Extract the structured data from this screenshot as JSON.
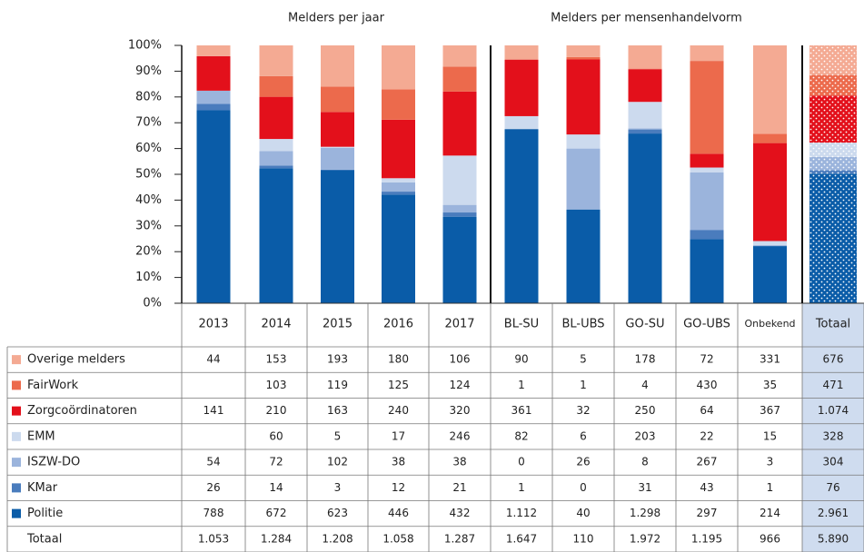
{
  "chart_data": {
    "type": "bar",
    "stack": "percent",
    "dotted_last": true,
    "groups": [
      {
        "label": "Melders per jaar",
        "span": 5
      },
      {
        "label": "Melders per mensenhandelvorm",
        "span": 5
      }
    ],
    "categories": [
      "2013",
      "2014",
      "2015",
      "2016",
      "2017",
      "BL-SU",
      "BL-UBS",
      "GO-SU",
      "GO-UBS",
      "Onbekend",
      "Totaal"
    ],
    "ylim": [
      0,
      100
    ],
    "yticks": [
      {
        "value": 0,
        "label": "0%"
      },
      {
        "value": 10,
        "label": "10%"
      },
      {
        "value": 20,
        "label": "20%"
      },
      {
        "value": 30,
        "label": "30%"
      },
      {
        "value": 40,
        "label": "40%"
      },
      {
        "value": 50,
        "label": "50%"
      },
      {
        "value": 60,
        "label": "60%"
      },
      {
        "value": 70,
        "label": "70%"
      },
      {
        "value": 80,
        "label": "80%"
      },
      {
        "value": 90,
        "label": "90%"
      },
      {
        "value": 100,
        "label": "100%"
      }
    ],
    "series": [
      {
        "name": "Overige melders",
        "color": "#f4aa93",
        "values": [
          44,
          153,
          193,
          180,
          106,
          90,
          5,
          178,
          72,
          331,
          676
        ],
        "value_labels": [
          "44",
          "153",
          "193",
          "180",
          "106",
          "90",
          "5",
          "178",
          "72",
          "331",
          "676"
        ]
      },
      {
        "name": "FairWork",
        "color": "#ec6a4c",
        "values": [
          null,
          103,
          119,
          125,
          124,
          1,
          1,
          4,
          430,
          35,
          471
        ],
        "value_labels": [
          null,
          "103",
          "119",
          "125",
          "124",
          "1",
          "1",
          "4",
          "430",
          "35",
          "471"
        ]
      },
      {
        "name": "Zorgcoördinatoren",
        "color": "#e3101b",
        "values": [
          141,
          210,
          163,
          240,
          320,
          361,
          32,
          250,
          64,
          367,
          1074
        ],
        "value_labels": [
          "141",
          "210",
          "163",
          "240",
          "320",
          "361",
          "32",
          "250",
          "64",
          "367",
          "1.074"
        ]
      },
      {
        "name": "EMM",
        "color": "#ccdaee",
        "values": [
          null,
          60,
          5,
          17,
          246,
          82,
          6,
          203,
          22,
          15,
          328
        ],
        "value_labels": [
          null,
          "60",
          "5",
          "17",
          "246",
          "82",
          "6",
          "203",
          "22",
          "15",
          "328"
        ]
      },
      {
        "name": "ISZW-DO",
        "color": "#9bb4dc",
        "values": [
          54,
          72,
          102,
          38,
          38,
          0,
          26,
          8,
          267,
          3,
          304
        ],
        "value_labels": [
          "54",
          "72",
          "102",
          "38",
          "38",
          "0",
          "26",
          "8",
          "267",
          "3",
          "304"
        ]
      },
      {
        "name": "KMar",
        "color": "#4a7cbd",
        "values": [
          26,
          14,
          3,
          12,
          21,
          1,
          0,
          31,
          43,
          1,
          76
        ],
        "value_labels": [
          "26",
          "14",
          "3",
          "12",
          "21",
          "1",
          "0",
          "31",
          "43",
          "1",
          "76"
        ]
      },
      {
        "name": "Politie",
        "color": "#0a5ca8",
        "values": [
          788,
          672,
          623,
          446,
          432,
          1112,
          40,
          1298,
          297,
          214,
          2961
        ],
        "value_labels": [
          "788",
          "672",
          "623",
          "446",
          "432",
          "1.112",
          "40",
          "1.298",
          "297",
          "214",
          "2.961"
        ]
      }
    ],
    "totals_name": "Totaal",
    "totals": [
      1053,
      1284,
      1208,
      1058,
      1287,
      1647,
      110,
      1972,
      1195,
      966,
      5890
    ],
    "totals_labels": [
      "1.053",
      "1.284",
      "1.208",
      "1.058",
      "1.287",
      "1.647",
      "110",
      "1.972",
      "1.195",
      "966",
      "5.890"
    ]
  }
}
